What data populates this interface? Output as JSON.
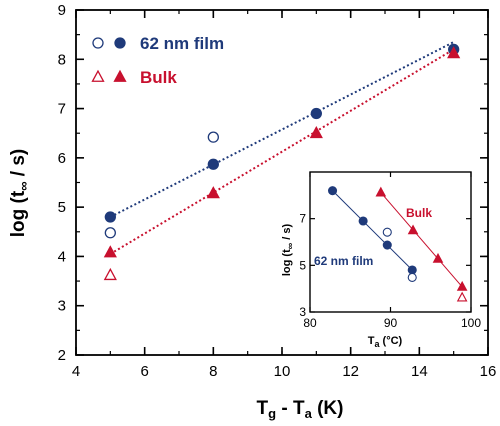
{
  "chart_data": [
    {
      "type": "scatter",
      "xlabel_main": "T",
      "xlabel_sub": "g",
      "xlabel_rest": " - T",
      "xlabel_sub2": "a",
      "xlabel_unit": " (K)",
      "ylabel_main": "log (t",
      "ylabel_sub": "∞",
      "ylabel_unit": " / s)",
      "xlim": [
        4,
        16
      ],
      "ylim": [
        2,
        9
      ],
      "xticks": [
        4,
        6,
        8,
        10,
        12,
        14,
        16
      ],
      "yticks": [
        2,
        3,
        4,
        5,
        6,
        7,
        8,
        9
      ],
      "legend": [
        {
          "label": "62 nm film",
          "color": "#1f3a7a"
        },
        {
          "label": "Bulk",
          "color": "#c8102e"
        }
      ],
      "series": [
        {
          "name": "62 nm film",
          "marker": "circle-filled",
          "color": "#1f3a7a",
          "x": [
            5,
            8,
            11,
            15
          ],
          "y": [
            4.8,
            5.87,
            6.9,
            8.2
          ]
        },
        {
          "name": "62 nm film",
          "marker": "circle-open",
          "color": "#1f3a7a",
          "x": [
            5,
            8
          ],
          "y": [
            4.48,
            6.42
          ]
        },
        {
          "name": "Bulk",
          "marker": "triangle-filled",
          "color": "#c8102e",
          "x": [
            5,
            8,
            11,
            15
          ],
          "y": [
            4.08,
            5.28,
            6.5,
            8.12
          ]
        },
        {
          "name": "Bulk",
          "marker": "triangle-open",
          "color": "#c8102e",
          "x": [
            5
          ],
          "y": [
            3.62
          ]
        }
      ],
      "fits": [
        {
          "color": "#1f3a7a",
          "x": [
            5,
            15
          ],
          "y": [
            4.8,
            8.35
          ]
        },
        {
          "color": "#c8102e",
          "x": [
            5,
            15
          ],
          "y": [
            4.05,
            8.2
          ]
        }
      ]
    },
    {
      "type": "scatter",
      "inset": true,
      "xlabel_main": "T",
      "xlabel_sub": "a",
      "xlabel_unit": " (°C)",
      "ylabel_main": "log (t",
      "ylabel_sub": "∞",
      "ylabel_unit": " / s)",
      "xlim": [
        80,
        100
      ],
      "ylim": [
        3,
        9
      ],
      "xticks": [
        80,
        90,
        100
      ],
      "yticks": [
        3,
        5,
        7
      ],
      "labels": [
        {
          "text": "Bulk",
          "color": "#c8102e"
        },
        {
          "text": "62 nm film",
          "color": "#1f3a7a"
        }
      ],
      "series": [
        {
          "name": "62 nm film",
          "marker": "circle-filled",
          "color": "#1f3a7a",
          "x": [
            82.8,
            86.6,
            89.6,
            92.7
          ],
          "y": [
            8.2,
            6.9,
            5.87,
            4.8
          ]
        },
        {
          "name": "62 nm film",
          "marker": "circle-open",
          "color": "#1f3a7a",
          "x": [
            89.6,
            92.7
          ],
          "y": [
            6.42,
            4.48
          ]
        },
        {
          "name": "Bulk",
          "marker": "triangle-filled",
          "color": "#c8102e",
          "x": [
            88.8,
            92.8,
            95.9,
            98.9
          ],
          "y": [
            8.12,
            6.5,
            5.28,
            4.08
          ]
        },
        {
          "name": "Bulk",
          "marker": "triangle-open",
          "color": "#c8102e",
          "x": [
            98.9
          ],
          "y": [
            3.62
          ]
        }
      ],
      "fits": [
        {
          "color": "#1f3a7a",
          "x": [
            82.8,
            92.7
          ],
          "y": [
            8.2,
            4.8
          ]
        },
        {
          "color": "#c8102e",
          "x": [
            88.8,
            98.9
          ],
          "y": [
            8.12,
            4.08
          ]
        }
      ]
    }
  ]
}
